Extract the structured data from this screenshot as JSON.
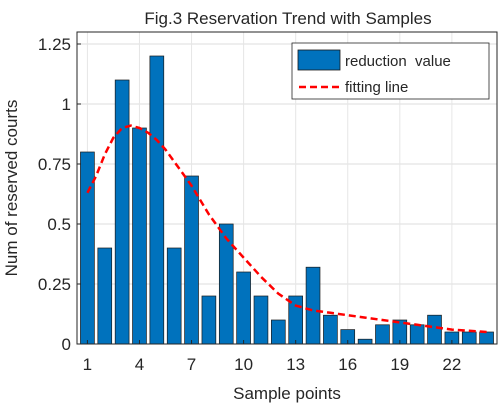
{
  "chart_data": {
    "type": "bar",
    "title": "Fig.3 Reservation Trend with Samples",
    "xlabel": "Sample points",
    "ylabel": "Num of reserved courts",
    "x": [
      1,
      2,
      3,
      4,
      5,
      6,
      7,
      8,
      9,
      10,
      11,
      12,
      13,
      14,
      15,
      16,
      17,
      18,
      19,
      20,
      21,
      22,
      23,
      24
    ],
    "xlim": [
      0.4,
      24.6
    ],
    "ylim": [
      0,
      1.3
    ],
    "xticks": [
      "1",
      "4",
      "7",
      "10",
      "13",
      "16",
      "19",
      "22"
    ],
    "yticks": [
      "0",
      "0.25",
      "0.5",
      "0.75",
      "1",
      "1.25"
    ],
    "grid": true,
    "legend_position": "top-right",
    "series": [
      {
        "name": "reduction  value",
        "type": "bar",
        "color": "#0072BD",
        "values": [
          0.8,
          0.4,
          1.1,
          0.9,
          1.2,
          0.4,
          0.7,
          0.2,
          0.5,
          0.3,
          0.2,
          0.1,
          0.2,
          0.32,
          0.12,
          0.06,
          0.02,
          0.08,
          0.1,
          0.08,
          0.12,
          0.05,
          0.05,
          0.05
        ]
      },
      {
        "name": "fitting line",
        "type": "line",
        "style": "dashed",
        "color": "#FF0000",
        "x": [
          1,
          1.5,
          2,
          2.5,
          3,
          3.5,
          4,
          4.5,
          5,
          5.5,
          6,
          6.5,
          7,
          7.5,
          8,
          8.5,
          9,
          9.5,
          10,
          11,
          12,
          13,
          14,
          15,
          16,
          17,
          18,
          19,
          20,
          21,
          22,
          23,
          24
        ],
        "values": [
          0.63,
          0.7,
          0.79,
          0.86,
          0.9,
          0.91,
          0.9,
          0.88,
          0.85,
          0.81,
          0.76,
          0.71,
          0.66,
          0.6,
          0.54,
          0.49,
          0.44,
          0.4,
          0.36,
          0.28,
          0.21,
          0.16,
          0.14,
          0.13,
          0.12,
          0.11,
          0.1,
          0.09,
          0.08,
          0.07,
          0.06,
          0.055,
          0.05
        ]
      }
    ]
  }
}
